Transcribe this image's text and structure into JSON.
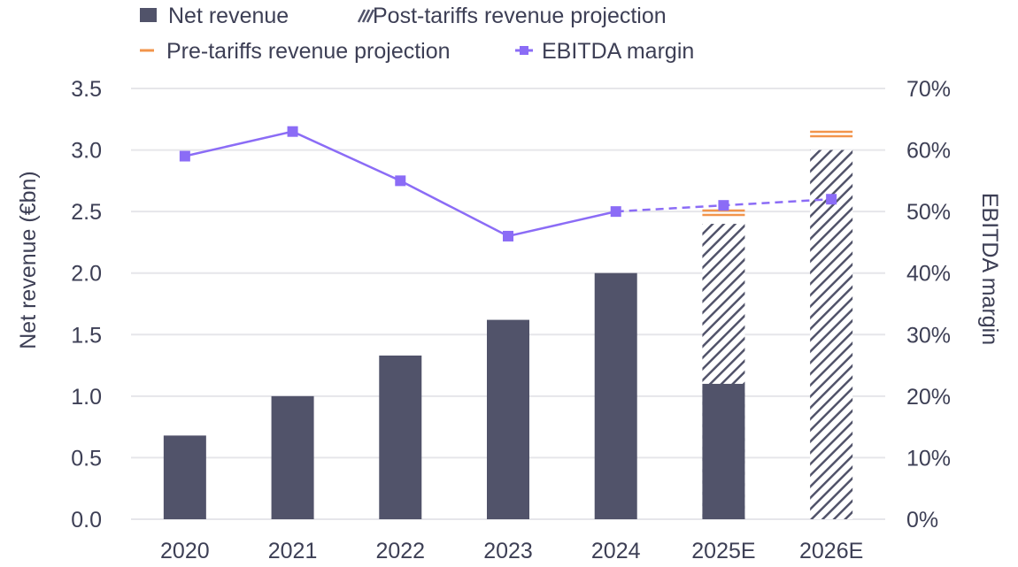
{
  "chart_data": {
    "type": "bar",
    "title": "",
    "categories": [
      "2020",
      "2021",
      "2022",
      "2023",
      "2024",
      "2025E",
      "2026E"
    ],
    "series": [
      {
        "name": "Net revenue",
        "kind": "bar",
        "axis": "left",
        "color": "#51536a",
        "values": [
          0.68,
          1.0,
          1.33,
          1.62,
          2.0,
          1.1,
          null
        ]
      },
      {
        "name": "Post-tariffs revenue projection",
        "kind": "hatched-bar-total",
        "axis": "left",
        "color": "#51536a",
        "values": [
          null,
          null,
          null,
          null,
          null,
          2.4,
          3.0
        ]
      },
      {
        "name": "Pre-tariffs revenue projection",
        "kind": "marker-double-line",
        "axis": "left",
        "color": "#f2944b",
        "values": [
          null,
          null,
          null,
          null,
          null,
          2.49,
          3.13
        ]
      },
      {
        "name": "EBITDA margin",
        "kind": "line",
        "axis": "right",
        "color": "#8b6cf6",
        "values": [
          59,
          63,
          55,
          46,
          50,
          51,
          52
        ],
        "dashed_from_index": 4
      }
    ],
    "left_axis": {
      "label": "Net revenue (€bn)",
      "range": [
        0,
        3.5
      ],
      "ticks": [
        "0.0",
        "0.5",
        "1.0",
        "1.5",
        "2.0",
        "2.5",
        "3.0",
        "3.5"
      ],
      "tick_values": [
        0,
        0.5,
        1.0,
        1.5,
        2.0,
        2.5,
        3.0,
        3.5
      ]
    },
    "right_axis": {
      "label": "EBITDA margin",
      "range": [
        0,
        70
      ],
      "ticks": [
        "0%",
        "10%",
        "20%",
        "30%",
        "40%",
        "50%",
        "60%",
        "70%"
      ],
      "tick_values": [
        0,
        10,
        20,
        30,
        40,
        50,
        60,
        70
      ]
    },
    "xlabel": "",
    "grid": true,
    "legend": {
      "placement": "top",
      "items": [
        {
          "label": "Net revenue",
          "icon": "solid-square"
        },
        {
          "label": "Post-tariffs revenue projection",
          "icon": "hatch"
        },
        {
          "label": "Pre-tariffs revenue projection",
          "icon": "dash"
        },
        {
          "label": "EBITDA margin",
          "icon": "line-square-marker"
        }
      ]
    }
  }
}
